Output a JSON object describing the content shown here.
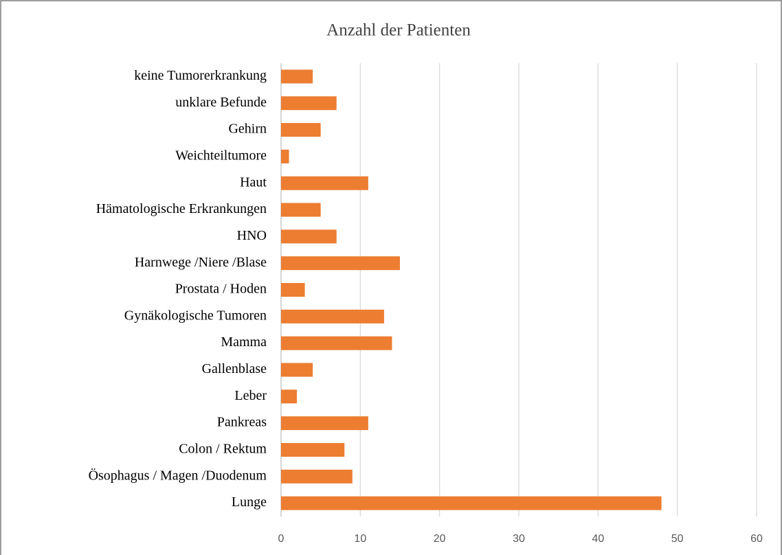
{
  "chart_data": {
    "type": "barh",
    "title": "Anzahl der Patienten",
    "categories": [
      "keine Tumorerkrankung",
      "unklare Befunde",
      "Gehirn",
      "Weichteiltumore",
      "Haut",
      "Hämatologische Erkrankungen",
      "HNO",
      "Harnwege /Niere /Blase",
      "Prostata / Hoden",
      "Gynäkologische Tumoren",
      "Mamma",
      "Gallenblase",
      "Leber",
      "Pankreas",
      "Colon / Rektum",
      "Ösophagus / Magen /Duodenum",
      "Lunge"
    ],
    "values": [
      4,
      7,
      5,
      1,
      11,
      5,
      7,
      15,
      3,
      13,
      14,
      4,
      2,
      11,
      8,
      9,
      48
    ],
    "color": "#ed7d31",
    "xlim": [
      0,
      60
    ],
    "xticks": [
      0,
      10,
      20,
      30,
      40,
      50,
      60
    ],
    "grid": true
  }
}
